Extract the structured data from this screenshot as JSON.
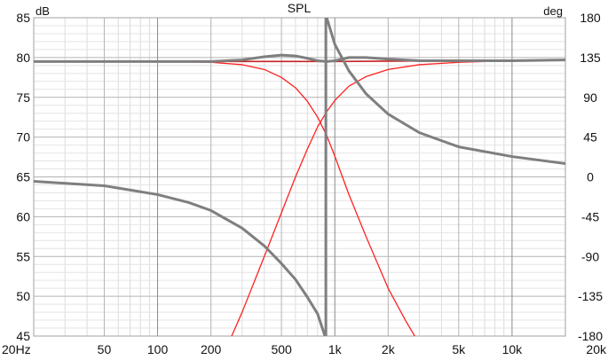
{
  "chart_data": {
    "type": "line",
    "title": "SPL",
    "ylabel_left": "dB",
    "ylabel_right": "deg",
    "x_scale": "log",
    "xlim": [
      20,
      20000
    ],
    "ylim_left": [
      45,
      85
    ],
    "ylim_right": [
      -180,
      180
    ],
    "grid": true,
    "x_ticks": [
      {
        "value": 20,
        "label": "20Hz"
      },
      {
        "value": 50,
        "label": "50"
      },
      {
        "value": 100,
        "label": "100"
      },
      {
        "value": 200,
        "label": "200"
      },
      {
        "value": 500,
        "label": "500"
      },
      {
        "value": 1000,
        "label": "1k"
      },
      {
        "value": 2000,
        "label": "2k"
      },
      {
        "value": 5000,
        "label": "5k"
      },
      {
        "value": 10000,
        "label": "10k"
      },
      {
        "value": 20000,
        "label": "20k"
      }
    ],
    "y_ticks_left": [
      {
        "value": 85,
        "label": "85"
      },
      {
        "value": 80,
        "label": "80"
      },
      {
        "value": 75,
        "label": "75"
      },
      {
        "value": 70,
        "label": "70"
      },
      {
        "value": 65,
        "label": "65"
      },
      {
        "value": 60,
        "label": "60"
      },
      {
        "value": 55,
        "label": "55"
      },
      {
        "value": 50,
        "label": "50"
      },
      {
        "value": 45,
        "label": "45"
      }
    ],
    "y_ticks_right": [
      {
        "value": 180,
        "label": "180"
      },
      {
        "value": 135,
        "label": "135"
      },
      {
        "value": 90,
        "label": "90"
      },
      {
        "value": 45,
        "label": "45"
      },
      {
        "value": 0,
        "label": "0"
      },
      {
        "value": -45,
        "label": "-45"
      },
      {
        "value": -90,
        "label": "-90"
      },
      {
        "value": -135,
        "label": "-135"
      },
      {
        "value": -180,
        "label": "-180"
      }
    ],
    "series": [
      {
        "axis": "left",
        "color": "#ff2020",
        "width": 1.3,
        "points": [
          [
            20,
            79.5
          ],
          [
            50,
            79.5
          ],
          [
            100,
            79.5
          ],
          [
            200,
            79.4
          ],
          [
            300,
            79.1
          ],
          [
            400,
            78.5
          ],
          [
            500,
            77.5
          ],
          [
            600,
            76.2
          ],
          [
            700,
            74.5
          ],
          [
            800,
            72.5
          ],
          [
            900,
            70.2
          ],
          [
            1000,
            67.6
          ],
          [
            1200,
            62.8
          ],
          [
            1500,
            57.5
          ],
          [
            2000,
            51
          ],
          [
            2500,
            47
          ],
          [
            3000,
            44
          ]
        ]
      },
      {
        "axis": "left",
        "color": "#ff2020",
        "width": 1.3,
        "points": [
          [
            250,
            44
          ],
          [
            300,
            48
          ],
          [
            400,
            55
          ],
          [
            500,
            60.5
          ],
          [
            600,
            65
          ],
          [
            700,
            68.5
          ],
          [
            800,
            71.3
          ],
          [
            900,
            73.2
          ],
          [
            1000,
            74.6
          ],
          [
            1200,
            76.4
          ],
          [
            1500,
            77.6
          ],
          [
            2000,
            78.5
          ],
          [
            3000,
            79.1
          ],
          [
            5000,
            79.4
          ],
          [
            10000,
            79.6
          ],
          [
            20000,
            79.7
          ]
        ]
      },
      {
        "axis": "left",
        "color": "#c92020",
        "width": 1.6,
        "points": [
          [
            20,
            79.5
          ],
          [
            200,
            79.5
          ],
          [
            1000,
            79.5
          ],
          [
            5000,
            79.6
          ],
          [
            20000,
            79.7
          ]
        ]
      },
      {
        "axis": "left",
        "color": "#7f7f7f",
        "width": 3,
        "points": [
          [
            20,
            79.5
          ],
          [
            200,
            79.5
          ],
          [
            300,
            79.7
          ],
          [
            400,
            80.1
          ],
          [
            500,
            80.3
          ],
          [
            600,
            80.2
          ],
          [
            700,
            79.9
          ],
          [
            800,
            79.6
          ],
          [
            900,
            79.5
          ],
          [
            1000,
            79.6
          ],
          [
            1200,
            80
          ],
          [
            1500,
            80
          ],
          [
            2000,
            79.8
          ],
          [
            3000,
            79.6
          ],
          [
            5000,
            79.6
          ],
          [
            10000,
            79.6
          ],
          [
            20000,
            79.7
          ]
        ]
      },
      {
        "axis": "right",
        "color": "#7f7f7f",
        "width": 3,
        "points": [
          [
            20,
            -5
          ],
          [
            50,
            -10
          ],
          [
            100,
            -20
          ],
          [
            150,
            -29
          ],
          [
            200,
            -38
          ],
          [
            300,
            -58
          ],
          [
            400,
            -78
          ],
          [
            500,
            -98
          ],
          [
            600,
            -116
          ],
          [
            700,
            -136
          ],
          [
            800,
            -155
          ],
          [
            880,
            -180
          ]
        ]
      },
      {
        "axis": "right",
        "color": "#7f7f7f",
        "width": 3,
        "points": [
          [
            900,
            180
          ],
          [
            1000,
            150
          ],
          [
            1200,
            120
          ],
          [
            1500,
            94
          ],
          [
            2000,
            71
          ],
          [
            3000,
            50
          ],
          [
            5000,
            34
          ],
          [
            10000,
            23
          ],
          [
            20000,
            15
          ]
        ]
      },
      {
        "axis": "right",
        "color": "#7f7f7f",
        "width": 3,
        "points": [
          [
            890,
            -180
          ],
          [
            890,
            180
          ]
        ]
      }
    ]
  }
}
